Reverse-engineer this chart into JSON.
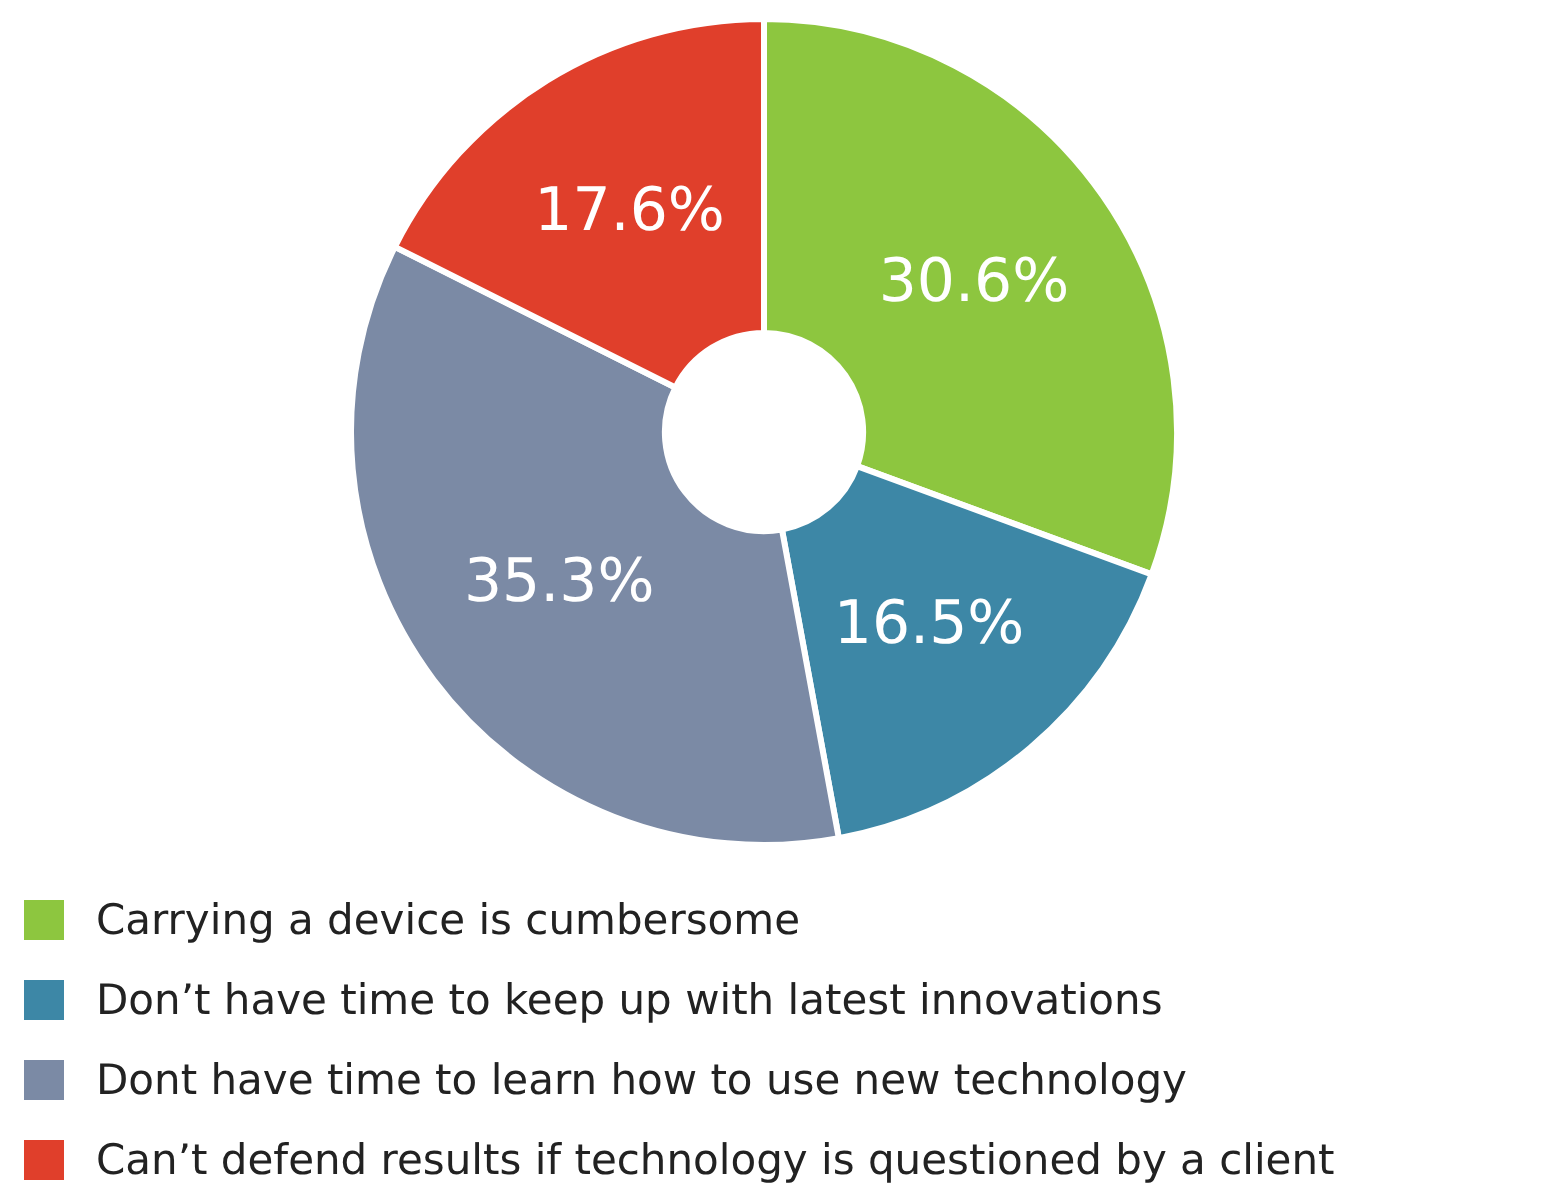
{
  "chart_data": {
    "type": "donut",
    "categories": [
      "Carrying a device is cumbersome",
      "Don’t have time to keep up with latest innovations",
      "Dont have time to learn how to use new technology",
      "Can’t defend results if technology is questioned by a client"
    ],
    "values": [
      30.6,
      16.5,
      35.3,
      17.6
    ],
    "value_labels": [
      "30.6%",
      "16.5%",
      "35.3%",
      "17.6%"
    ],
    "colors": [
      "#8dc63f",
      "#3d87a6",
      "#7b8aa5",
      "#e03f2b"
    ],
    "legend": "bottom"
  }
}
